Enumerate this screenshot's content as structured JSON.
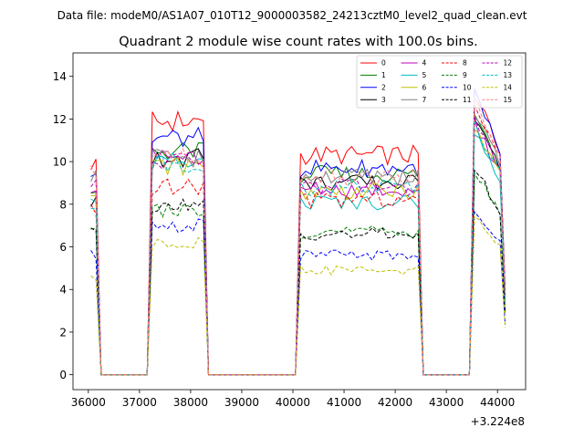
{
  "figure": {
    "suptitle": "Data file: modeM0/AS1A07_010T12_9000003582_24213cztM0_level2_quad_clean.evt"
  },
  "chart_data": {
    "type": "line",
    "title": "Quadrant 2 module wise count rates with 100.0s bins.",
    "xlabel": "",
    "ylabel": "",
    "x_offset_label": "+3.224e8",
    "xlim": [
      35700,
      44550
    ],
    "ylim": [
      -0.7,
      15.1
    ],
    "xticks": [
      36000,
      37000,
      38000,
      39000,
      40000,
      41000,
      42000,
      43000,
      44000
    ],
    "xtick_labels": [
      "36000",
      "37000",
      "38000",
      "39000",
      "40000",
      "41000",
      "42000",
      "43000",
      "44000"
    ],
    "yticks": [
      0,
      2,
      4,
      6,
      8,
      10,
      12,
      14
    ],
    "ytick_labels": [
      "0",
      "2",
      "4",
      "6",
      "8",
      "10",
      "12",
      "14"
    ],
    "grid": false,
    "legend_position": "top-right",
    "legend_columns": 4,
    "segments": [
      {
        "start": 36050,
        "bins": 2
      },
      {
        "start": 37250,
        "bins": 11
      },
      {
        "start": 40150,
        "bins": 24
      },
      {
        "start": 43550,
        "bins": 6
      }
    ],
    "gaps": [
      [
        36250,
        37150
      ],
      [
        38350,
        40050
      ],
      [
        42550,
        43450
      ]
    ],
    "series": [
      {
        "name": "0",
        "color": "#ff0000",
        "dash": "solid",
        "plateau": [
          9.9,
          11.9,
          10.3,
          13.3
        ]
      },
      {
        "name": "1",
        "color": "#008000",
        "dash": "solid",
        "plateau": [
          8.9,
          10.5,
          9.4,
          12.2
        ]
      },
      {
        "name": "2",
        "color": "#0000ff",
        "dash": "solid",
        "plateau": [
          9.5,
          11.1,
          9.7,
          13.1
        ]
      },
      {
        "name": "3",
        "color": "#000000",
        "dash": "solid",
        "plateau": [
          8.1,
          10.2,
          9.0,
          12.0
        ]
      },
      {
        "name": "4",
        "color": "#bf00bf",
        "dash": "solid",
        "plateau": [
          8.9,
          10.3,
          8.7,
          11.8
        ]
      },
      {
        "name": "5",
        "color": "#00bfbf",
        "dash": "solid",
        "plateau": [
          7.9,
          10.0,
          8.1,
          11.5
        ]
      },
      {
        "name": "6",
        "color": "#bfbf00",
        "dash": "solid",
        "plateau": [
          8.7,
          9.8,
          8.6,
          11.6
        ]
      },
      {
        "name": "7",
        "color": "#808080",
        "dash": "solid",
        "plateau": [
          9.2,
          10.2,
          9.3,
          12.4
        ]
      },
      {
        "name": "8",
        "color": "#ff0000",
        "dash": "dashed",
        "plateau": [
          7.7,
          8.8,
          8.2,
          12.6
        ]
      },
      {
        "name": "9",
        "color": "#008000",
        "dash": "dashed",
        "plateau": [
          6.7,
          7.7,
          6.7,
          9.6
        ]
      },
      {
        "name": "10",
        "color": "#0000ff",
        "dash": "dashed",
        "plateau": [
          5.7,
          7.0,
          5.6,
          7.8
        ]
      },
      {
        "name": "11",
        "color": "#000000",
        "dash": "dashed",
        "plateau": [
          6.9,
          7.9,
          6.6,
          9.7
        ]
      },
      {
        "name": "12",
        "color": "#bf00bf",
        "dash": "dashed",
        "plateau": [
          9.0,
          10.0,
          8.8,
          12.1
        ]
      },
      {
        "name": "13",
        "color": "#00bfbf",
        "dash": "dashed",
        "plateau": [
          7.8,
          9.9,
          8.8,
          11.7
        ]
      },
      {
        "name": "14",
        "color": "#bfbf00",
        "dash": "dashed",
        "plateau": [
          4.6,
          6.2,
          4.9,
          7.4
        ]
      },
      {
        "name": "15",
        "color": "#ff8080",
        "dash": "dashed",
        "plateau": [
          9.4,
          10.3,
          9.3,
          12.8
        ]
      }
    ]
  }
}
